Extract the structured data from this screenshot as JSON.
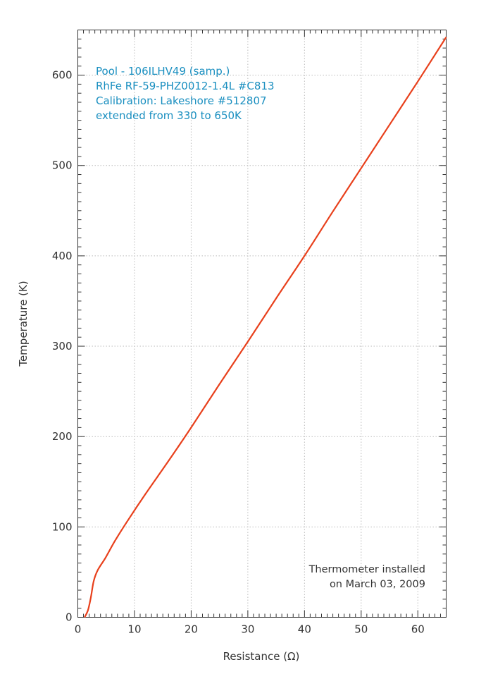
{
  "chart_data": {
    "type": "line",
    "title": "",
    "xlabel": "Resistance (Ω)",
    "ylabel": "Temperature (K)",
    "xlim": [
      0,
      65
    ],
    "ylim": [
      0,
      650
    ],
    "xticks": [
      0,
      10,
      20,
      30,
      40,
      50,
      60
    ],
    "yticks": [
      0,
      100,
      200,
      300,
      400,
      500,
      600
    ],
    "grid": true,
    "series": [
      {
        "name": "RhFe RF-59-PHZ0012-1.4L #C813",
        "color": "#e8401c",
        "x": [
          1.2,
          1.8,
          2.3,
          2.8,
          3.5,
          4.9,
          6.5,
          8.6,
          12,
          16,
          20,
          25,
          30,
          35,
          40,
          45,
          50,
          55,
          60,
          65
        ],
        "y": [
          0,
          8,
          22,
          40,
          52,
          66,
          84,
          105,
          137,
          173,
          210,
          258,
          305,
          353,
          400,
          449,
          497,
          545,
          593,
          642
        ]
      }
    ],
    "annotations": {
      "top_left": [
        "Pool - 106ILHV49 (samp.)",
        "RhFe RF-59-PHZ0012-1.4L #C813",
        "Calibration: Lakeshore #512807",
        "extended from 330 to 650K"
      ],
      "bottom_right": [
        "Thermometer installed",
        "on March 03, 2009"
      ]
    }
  }
}
